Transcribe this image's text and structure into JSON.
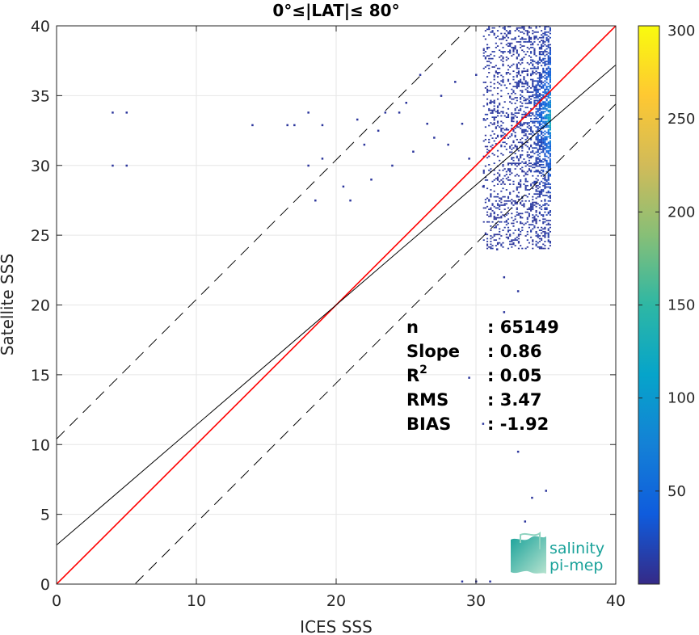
{
  "chart_data": {
    "type": "heatmap",
    "title": "0°≤|LAT|≤ 80°",
    "xlabel": "ICES SSS",
    "ylabel": "Satellite SSS",
    "xlim": [
      0,
      40
    ],
    "ylim": [
      0,
      40
    ],
    "xticks": [
      0,
      10,
      20,
      30,
      40
    ],
    "yticks": [
      0,
      5,
      10,
      15,
      20,
      25,
      30,
      35,
      40
    ],
    "grid": true,
    "colorbar": {
      "min": 0,
      "max": 300,
      "ticks": [
        50,
        100,
        150,
        200,
        250,
        300
      ],
      "colormap": "parula",
      "colors": [
        "#352a87",
        "#0f5cdd",
        "#1481d6",
        "#06a4ca",
        "#2eb7a4",
        "#87bf77",
        "#d1bb59",
        "#fec832",
        "#f9fb0e"
      ]
    },
    "lines": [
      {
        "name": "identity",
        "slope": 1.0,
        "intercept": 0.0,
        "color": "#ff0000",
        "style": "solid"
      },
      {
        "name": "regression",
        "slope": 0.86,
        "intercept": 2.8,
        "color": "#000000",
        "style": "solid"
      },
      {
        "name": "upper-bound",
        "slope": 1.0,
        "intercept": 10.4,
        "color": "#000000",
        "style": "dashed"
      },
      {
        "name": "lower-bound",
        "slope": 1.0,
        "intercept": -5.6,
        "color": "#000000",
        "style": "dashed"
      }
    ],
    "density_core": {
      "x_range": [
        30.5,
        35.3
      ],
      "y_range": [
        24,
        40
      ],
      "peak_x": 35.0,
      "peak_y": 33.5
    },
    "scatter_points": [
      [
        4.0,
        33.8
      ],
      [
        5.0,
        33.8
      ],
      [
        4.0,
        30.0
      ],
      [
        5.0,
        30.0
      ],
      [
        14.0,
        32.9
      ],
      [
        16.5,
        32.9
      ],
      [
        17.0,
        32.9
      ],
      [
        18.0,
        33.8
      ],
      [
        18.0,
        30.0
      ],
      [
        18.5,
        27.5
      ],
      [
        19.0,
        32.9
      ],
      [
        19.0,
        30.5
      ],
      [
        20.5,
        28.5
      ],
      [
        21.0,
        27.5
      ],
      [
        21.5,
        33.3
      ],
      [
        22.0,
        31.5
      ],
      [
        22.5,
        29.0
      ],
      [
        23.0,
        32.5
      ],
      [
        23.5,
        33.8
      ],
      [
        24.0,
        30.0
      ],
      [
        24.5,
        33.8
      ],
      [
        25.0,
        34.5
      ],
      [
        25.5,
        31.0
      ],
      [
        26.0,
        36.5
      ],
      [
        26.5,
        33.0
      ],
      [
        27.0,
        32.0
      ],
      [
        27.5,
        35.0
      ],
      [
        28.0,
        31.5
      ],
      [
        28.5,
        36.0
      ],
      [
        29.0,
        33.0
      ],
      [
        29.5,
        30.5
      ],
      [
        30.0,
        36.5
      ],
      [
        30.5,
        28.5
      ],
      [
        31.0,
        34.5
      ],
      [
        31.5,
        24.0
      ],
      [
        32.0,
        22.0
      ],
      [
        32.0,
        19.5
      ],
      [
        33.0,
        21.0
      ],
      [
        29.0,
        0.2
      ],
      [
        30.0,
        0.2
      ],
      [
        31.0,
        0.2
      ],
      [
        33.5,
        4.5
      ],
      [
        34.0,
        6.2
      ],
      [
        35.0,
        6.7
      ],
      [
        29.5,
        14.8
      ],
      [
        30.5,
        11.5
      ],
      [
        33.0,
        9.5
      ]
    ],
    "stats": [
      {
        "label": "n",
        "value": ": 65149"
      },
      {
        "label": "Slope",
        "value": ": 0.86"
      },
      {
        "label": "R",
        "superscript": "2",
        "value": ": 0.05"
      },
      {
        "label": "RMS",
        "value": ": 3.47"
      },
      {
        "label": "BIAS",
        "value": ": -1.92"
      }
    ]
  },
  "logo": {
    "line1": "salinity",
    "line2": "pi-mep"
  }
}
